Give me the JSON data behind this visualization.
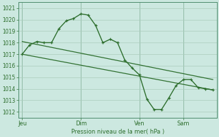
{
  "background_color": "#cce8e0",
  "grid_color": "#aaccbb",
  "line_color": "#2d6e2d",
  "xlabel": "Pression niveau de la mer( hPa )",
  "ylim": [
    1011.5,
    1021.5
  ],
  "yticks": [
    1012,
    1013,
    1014,
    1015,
    1016,
    1017,
    1018,
    1019,
    1020,
    1021
  ],
  "day_labels": [
    "Jeu",
    "Dim",
    "Ven",
    "Sam"
  ],
  "day_positions": [
    0.0,
    0.308,
    0.615,
    0.846
  ],
  "vline_positions": [
    0.0,
    0.308,
    0.615,
    0.846
  ],
  "series_main": {
    "x": [
      0.0,
      0.038,
      0.077,
      0.115,
      0.154,
      0.192,
      0.231,
      0.269,
      0.308,
      0.346,
      0.385,
      0.423,
      0.462,
      0.5,
      0.538,
      0.577,
      0.615,
      0.654,
      0.692,
      0.731,
      0.769,
      0.808,
      0.846,
      0.885,
      0.923,
      0.962,
      1.0
    ],
    "y": [
      1017.0,
      1017.8,
      1018.1,
      1018.0,
      1018.0,
      1019.2,
      1019.9,
      1020.1,
      1020.5,
      1020.4,
      1019.5,
      1018.0,
      1018.3,
      1018.0,
      1016.5,
      1015.8,
      1015.2,
      1013.1,
      1012.2,
      1012.2,
      1013.2,
      1014.3,
      1014.8,
      1014.8,
      1014.1,
      1014.0,
      1013.9
    ]
  },
  "series_trend1": {
    "x": [
      0.0,
      1.0
    ],
    "y": [
      1017.0,
      1013.9
    ]
  },
  "series_trend2": {
    "x": [
      0.0,
      1.0
    ],
    "y": [
      1018.1,
      1014.8
    ]
  }
}
